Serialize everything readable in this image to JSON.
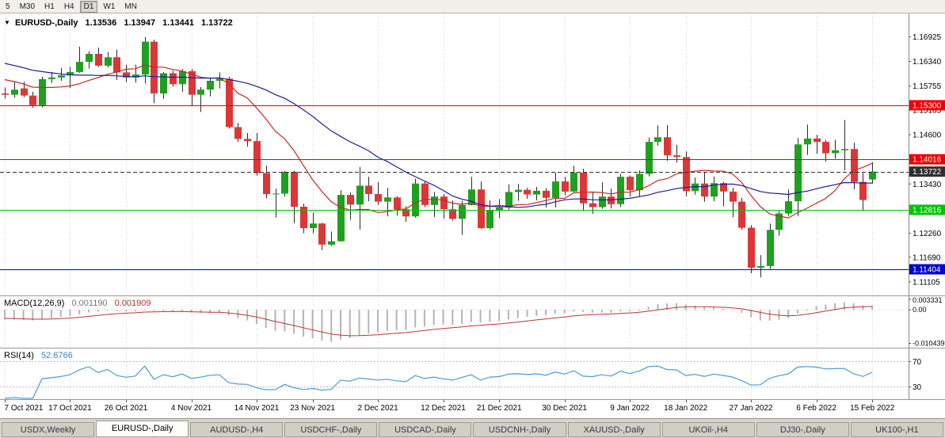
{
  "toolbar": {
    "timeframes": [
      "5",
      "M30",
      "H1",
      "H4",
      "D1",
      "W1",
      "MN"
    ],
    "active_index": 4
  },
  "price_header": {
    "collapse_icon": "▼",
    "symbol": "EURUSD-,Daily",
    "open": "1.13536",
    "high": "1.13947",
    "low": "1.13441",
    "close": "1.13722"
  },
  "tabs": {
    "active_index": 1,
    "items": [
      {
        "label": "USDX,Weekly"
      },
      {
        "label": "EURUSD-,Daily"
      },
      {
        "label": "AUDUSD-,H4"
      },
      {
        "label": "USDCHF-,Daily"
      },
      {
        "label": "USDCAD-,Daily"
      },
      {
        "label": "USDCNH-,Daily"
      },
      {
        "label": "XAUUSD-,Daily"
      },
      {
        "label": "UKOil-,H4"
      },
      {
        "label": "DJ30-,Daily"
      },
      {
        "label": "UK100-,H1"
      }
    ]
  },
  "chart_data": {
    "type": "candlestick",
    "symbol": "EURUSD-,Daily",
    "price_range": {
      "max": 1.1748,
      "min": 1.1082
    },
    "price_axis_ticks": [
      "1.16925",
      "1.16340",
      "1.15755",
      "1.15185",
      "1.14600",
      "1.13430",
      "1.12260",
      "1.11690",
      "1.11105"
    ],
    "candle_colors": {
      "up": "#1ea11e",
      "down": "#dd3636"
    },
    "hlines": [
      {
        "value": 1.153,
        "label": "1.15300",
        "color": "#ee0000",
        "text_color": "#ffffff",
        "style": "solid"
      },
      {
        "value": 1.14016,
        "label": "1.14016",
        "color": "#ee0000",
        "text_color": "#ffffff",
        "style": "solid"
      },
      {
        "value": 1.13722,
        "label": "1.13722",
        "color": "#2f2f2f",
        "text_color": "#ffffff",
        "style": "dashed"
      },
      {
        "value": 1.12816,
        "label": "1.12816",
        "color": "#00c400",
        "text_color": "#ffffff",
        "style": "solid"
      },
      {
        "value": 1.11404,
        "label": "1.11404",
        "color": "#0000c8",
        "text_color": "#ffffff",
        "style": "solid"
      }
    ],
    "moving_averages": [
      {
        "name": "fast-ma",
        "period": 10,
        "color": "#c62828"
      },
      {
        "name": "slow-ma",
        "period": 25,
        "color": "#1c1c9e"
      }
    ],
    "xticks": [
      {
        "i": 0,
        "label": "7 Oct 2021"
      },
      {
        "i": 7,
        "label": "17 Oct 2021"
      },
      {
        "i": 13,
        "label": "26 Oct 2021"
      },
      {
        "i": 20,
        "label": "4 Nov 2021"
      },
      {
        "i": 27,
        "label": "14 Nov 2021"
      },
      {
        "i": 33,
        "label": "23 Nov 2021"
      },
      {
        "i": 40,
        "label": "2 Dec 2021"
      },
      {
        "i": 47,
        "label": "12 Dec 2021"
      },
      {
        "i": 53,
        "label": "21 Dec 2021"
      },
      {
        "i": 60,
        "label": "30 Dec 2021"
      },
      {
        "i": 67,
        "label": "9 Jan 2022"
      },
      {
        "i": 73,
        "label": "18 Jan 2022"
      },
      {
        "i": 80,
        "label": "27 Jan 2022"
      },
      {
        "i": 87,
        "label": "6 Feb 2022"
      },
      {
        "i": 93,
        "label": "15 Feb 2022"
      }
    ],
    "candles": [
      [
        1.1558,
        1.1572,
        1.1546,
        1.1555
      ],
      [
        1.1555,
        1.1586,
        1.1548,
        1.1567
      ],
      [
        1.157,
        1.1586,
        1.1549,
        1.1553
      ],
      [
        1.1553,
        1.1562,
        1.1524,
        1.153
      ],
      [
        1.153,
        1.1598,
        1.1525,
        1.1592
      ],
      [
        1.1592,
        1.1609,
        1.1583,
        1.1596
      ],
      [
        1.1596,
        1.1619,
        1.1588,
        1.1601
      ],
      [
        1.1601,
        1.1621,
        1.1571,
        1.1609
      ],
      [
        1.1609,
        1.1669,
        1.1607,
        1.1633
      ],
      [
        1.1633,
        1.1658,
        1.1617,
        1.1652
      ],
      [
        1.1652,
        1.1667,
        1.1621,
        1.1624
      ],
      [
        1.1624,
        1.1656,
        1.162,
        1.1644
      ],
      [
        1.1644,
        1.1662,
        1.159,
        1.1608
      ],
      [
        1.1608,
        1.1626,
        1.1585,
        1.1596
      ],
      [
        1.1596,
        1.1626,
        1.1584,
        1.1603
      ],
      [
        1.1603,
        1.1692,
        1.1582,
        1.1681
      ],
      [
        1.1681,
        1.1686,
        1.1535,
        1.1558
      ],
      [
        1.1558,
        1.1609,
        1.1545,
        1.1606
      ],
      [
        1.1606,
        1.1612,
        1.1574,
        1.158
      ],
      [
        1.158,
        1.1616,
        1.1562,
        1.1611
      ],
      [
        1.1611,
        1.1616,
        1.1528,
        1.1555
      ],
      [
        1.1555,
        1.1573,
        1.1514,
        1.1567
      ],
      [
        1.1567,
        1.1594,
        1.1551,
        1.1588
      ],
      [
        1.1588,
        1.1608,
        1.157,
        1.1593
      ],
      [
        1.1593,
        1.1598,
        1.1475,
        1.1478
      ],
      [
        1.1478,
        1.1488,
        1.1443,
        1.145
      ],
      [
        1.145,
        1.1464,
        1.1432,
        1.1445
      ],
      [
        1.1445,
        1.1464,
        1.1363,
        1.1369
      ],
      [
        1.1369,
        1.1386,
        1.1309,
        1.1319
      ],
      [
        1.1319,
        1.1332,
        1.1263,
        1.132
      ],
      [
        1.132,
        1.1374,
        1.1313,
        1.1372
      ],
      [
        1.1372,
        1.1374,
        1.125,
        1.1289
      ],
      [
        1.1289,
        1.1296,
        1.1226,
        1.1238
      ],
      [
        1.1238,
        1.1275,
        1.1226,
        1.1249
      ],
      [
        1.1249,
        1.1251,
        1.1186,
        1.1199
      ],
      [
        1.1199,
        1.123,
        1.1196,
        1.1207
      ],
      [
        1.1207,
        1.1328,
        1.1206,
        1.1317
      ],
      [
        1.1317,
        1.1323,
        1.1258,
        1.1294
      ],
      [
        1.1294,
        1.1383,
        1.1235,
        1.1339
      ],
      [
        1.1339,
        1.136,
        1.1302,
        1.1319
      ],
      [
        1.1319,
        1.1348,
        1.1293,
        1.1301
      ],
      [
        1.1301,
        1.1334,
        1.1266,
        1.1311
      ],
      [
        1.1311,
        1.1314,
        1.1268,
        1.1283
      ],
      [
        1.1283,
        1.129,
        1.1253,
        1.1266
      ],
      [
        1.1266,
        1.1355,
        1.1263,
        1.1344
      ],
      [
        1.1344,
        1.135,
        1.1288,
        1.1293
      ],
      [
        1.1293,
        1.1324,
        1.1264,
        1.1313
      ],
      [
        1.1313,
        1.1319,
        1.1261,
        1.1283
      ],
      [
        1.1283,
        1.1304,
        1.1256,
        1.126
      ],
      [
        1.126,
        1.1303,
        1.1222,
        1.1293
      ],
      [
        1.1293,
        1.136,
        1.1292,
        1.133
      ],
      [
        1.133,
        1.1349,
        1.1236,
        1.1238
      ],
      [
        1.1238,
        1.1304,
        1.1235,
        1.128
      ],
      [
        1.128,
        1.1307,
        1.1262,
        1.1287
      ],
      [
        1.1287,
        1.1342,
        1.1282,
        1.1324
      ],
      [
        1.1324,
        1.1343,
        1.1303,
        1.1329
      ],
      [
        1.1329,
        1.1334,
        1.1308,
        1.1318
      ],
      [
        1.1318,
        1.1336,
        1.1304,
        1.1327
      ],
      [
        1.1327,
        1.1333,
        1.1287,
        1.131
      ],
      [
        1.131,
        1.137,
        1.1287,
        1.1349
      ],
      [
        1.1349,
        1.136,
        1.1316,
        1.1325
      ],
      [
        1.1325,
        1.1386,
        1.1321,
        1.137
      ],
      [
        1.137,
        1.1379,
        1.1279,
        1.1297
      ],
      [
        1.1297,
        1.1323,
        1.1272,
        1.1288
      ],
      [
        1.1288,
        1.1347,
        1.1284,
        1.1313
      ],
      [
        1.1313,
        1.1332,
        1.1285,
        1.1295
      ],
      [
        1.1295,
        1.1367,
        1.1288,
        1.136
      ],
      [
        1.136,
        1.1363,
        1.1313,
        1.1328
      ],
      [
        1.1328,
        1.1375,
        1.1314,
        1.1367
      ],
      [
        1.1367,
        1.1453,
        1.1361,
        1.1443
      ],
      [
        1.1443,
        1.1482,
        1.1434,
        1.1454
      ],
      [
        1.1454,
        1.1483,
        1.1398,
        1.1411
      ],
      [
        1.1411,
        1.1436,
        1.1394,
        1.1407
      ],
      [
        1.1407,
        1.142,
        1.1314,
        1.1326
      ],
      [
        1.1326,
        1.1358,
        1.1318,
        1.1344
      ],
      [
        1.1344,
        1.137,
        1.1301,
        1.1313
      ],
      [
        1.1313,
        1.1361,
        1.1302,
        1.1345
      ],
      [
        1.1345,
        1.1348,
        1.129,
        1.1325
      ],
      [
        1.1325,
        1.1334,
        1.1264,
        1.1301
      ],
      [
        1.1301,
        1.131,
        1.1234,
        1.1239
      ],
      [
        1.1239,
        1.1245,
        1.1131,
        1.1144
      ],
      [
        1.1144,
        1.1174,
        1.1121,
        1.1148
      ],
      [
        1.1148,
        1.1249,
        1.1141,
        1.1234
      ],
      [
        1.1234,
        1.1279,
        1.122,
        1.1273
      ],
      [
        1.1273,
        1.133,
        1.1267,
        1.1302
      ],
      [
        1.1302,
        1.1452,
        1.1267,
        1.1437
      ],
      [
        1.1437,
        1.1484,
        1.1412,
        1.1451
      ],
      [
        1.1451,
        1.146,
        1.1415,
        1.1443
      ],
      [
        1.1443,
        1.1448,
        1.1396,
        1.1416
      ],
      [
        1.1416,
        1.1448,
        1.1403,
        1.1423
      ],
      [
        1.1423,
        1.1495,
        1.1375,
        1.1426
      ],
      [
        1.1426,
        1.1441,
        1.133,
        1.1348
      ],
      [
        1.1348,
        1.1369,
        1.128,
        1.1305
      ],
      [
        1.13536,
        1.13947,
        1.13441,
        1.13722
      ]
    ],
    "indicators": {
      "macd": {
        "label": "MACD(12,26,9)",
        "value_main": "0.001190",
        "value_signal": "0.001909",
        "axis_labels": [
          "0.003331",
          "0.00",
          "-0.010439"
        ],
        "axis_values": [
          0.003331,
          0,
          -0.010439
        ],
        "range": {
          "max": 0.004,
          "min": -0.0113
        },
        "bar_color": "#b4b4b4",
        "signal_color": "#c03333"
      },
      "rsi": {
        "label": "RSI(14)",
        "value": "52.6766",
        "levels": [
          70,
          30
        ],
        "level_labels": [
          "70",
          "30"
        ],
        "range": {
          "max": 88,
          "min": 12
        },
        "line_color": "#4d9bd5"
      }
    }
  }
}
